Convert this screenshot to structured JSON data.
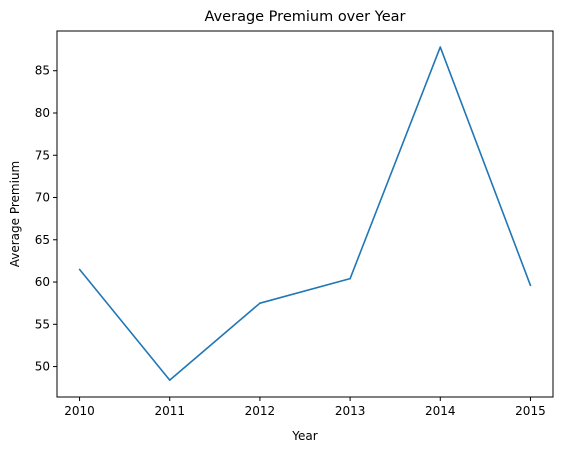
{
  "chart_data": {
    "type": "line",
    "title": "Average Premium over Year",
    "xlabel": "Year",
    "ylabel": "Average Premium",
    "x": [
      2010,
      2011,
      2012,
      2013,
      2014,
      2015
    ],
    "series": [
      {
        "values": [
          61.5,
          48.4,
          57.5,
          60.4,
          87.8,
          59.6
        ]
      }
    ],
    "xlim": [
      2009.75,
      2015.25
    ],
    "ylim": [
      46.4,
      89.7
    ],
    "xticks": [
      2010,
      2011,
      2012,
      2013,
      2014,
      2015
    ],
    "yticks": [
      50,
      55,
      60,
      65,
      70,
      75,
      80,
      85
    ],
    "grid": false,
    "line_color": "#1f77b4"
  }
}
